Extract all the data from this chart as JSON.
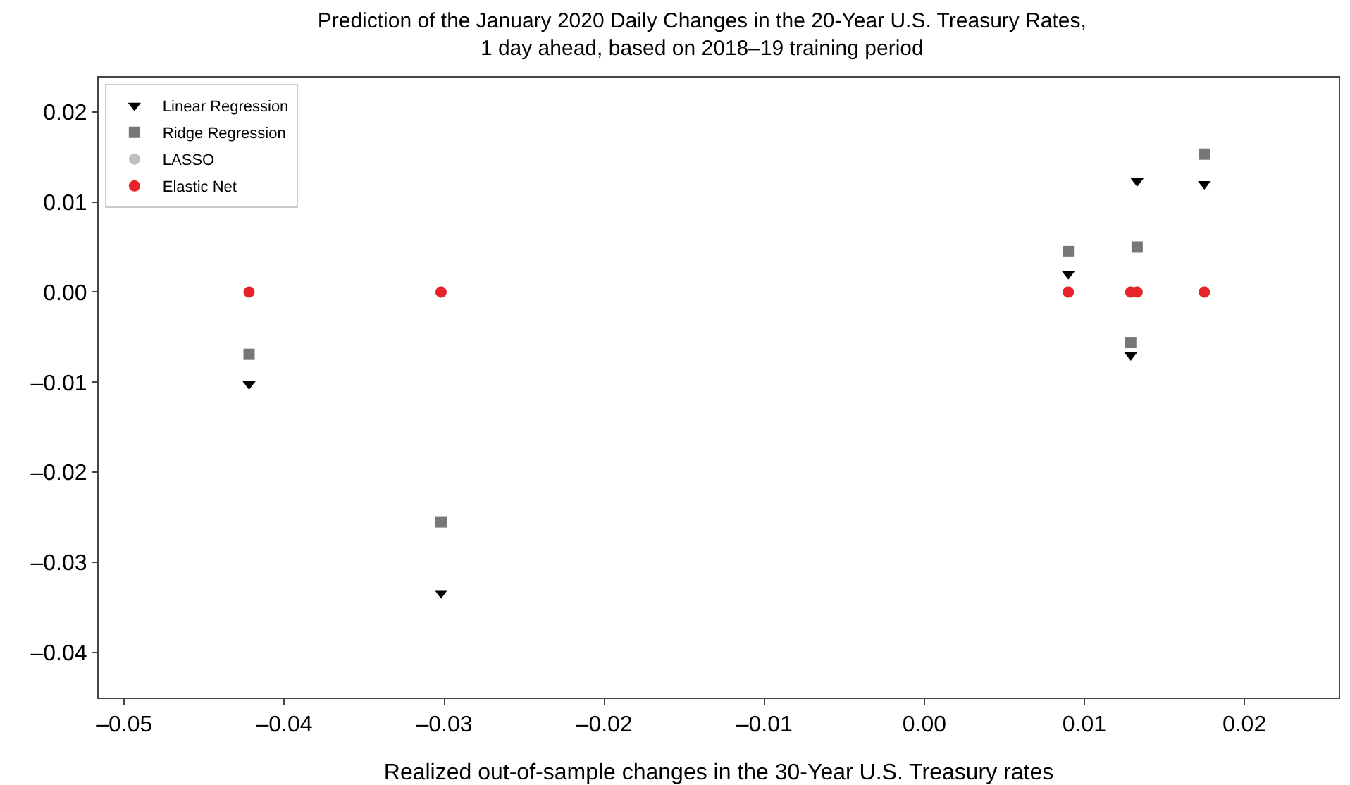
{
  "chart_data": {
    "type": "scatter",
    "title": "Prediction of the January 2020 Daily Changes in the 20-Year U.S. Treasury Rates,\n1 day ahead, based on 2018–19 training period",
    "xlabel": "Realized out-of-sample changes in the 30-Year U.S. Treasury rates",
    "x": [
      -0.0422,
      -0.0302,
      0.009,
      0.0129,
      0.0133,
      0.0175
    ],
    "series": [
      {
        "name": "Linear Regression",
        "color": "#000000",
        "marker": "triangle",
        "values": [
          -0.0102,
          -0.0334,
          0.002,
          -0.007,
          0.0123,
          0.012
        ]
      },
      {
        "name": "Ridge Regression",
        "color": "#777777",
        "marker": "square",
        "values": [
          -0.0069,
          -0.0255,
          0.0045,
          -0.0056,
          0.005,
          0.0153
        ]
      },
      {
        "name": "LASSO",
        "color": "#c0c0c0",
        "marker": "circle",
        "values": [
          0,
          0,
          0,
          0,
          0,
          0
        ]
      },
      {
        "name": "Elastic Net",
        "color": "#e8222a",
        "marker": "circle",
        "values": [
          0,
          0,
          0,
          0,
          0,
          0
        ]
      }
    ],
    "xlim": [
      -0.0516,
      0.0259
    ],
    "xticks": [
      {
        "value": -0.05,
        "label": "–0.05"
      },
      {
        "value": -0.04,
        "label": "–0.04"
      },
      {
        "value": -0.03,
        "label": "–0.03"
      },
      {
        "value": -0.02,
        "label": "–0.02"
      },
      {
        "value": -0.01,
        "label": "–0.01"
      },
      {
        "value": 0,
        "label": "0.00"
      },
      0.01,
      0.02
    ],
    "ylim": [
      -0.045,
      0.0238
    ],
    "yticks": [
      {
        "value": -0.04,
        "label": "–0.04"
      },
      {
        "value": -0.03,
        "label": "–0.03"
      },
      {
        "value": -0.02,
        "label": "–0.02"
      },
      {
        "value": -0.01,
        "label": "–0.01"
      },
      {
        "value": 0,
        "label": "0.00"
      },
      0.01,
      0.02
    ],
    "grid": false,
    "legend": "top left"
  }
}
